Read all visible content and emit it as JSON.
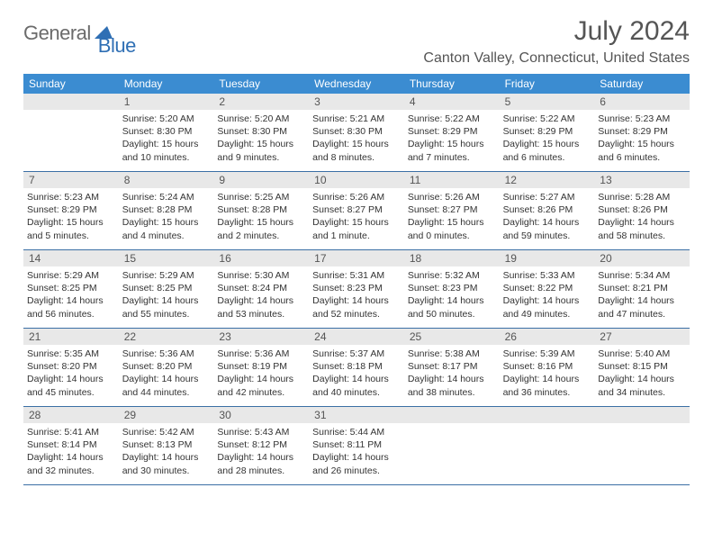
{
  "logo": {
    "general": "General",
    "blue": "Blue"
  },
  "title": "July 2024",
  "location": "Canton Valley, Connecticut, United States",
  "colors": {
    "header_bg": "#3b8cd1",
    "header_text": "#ffffff",
    "daynum_bg": "#e8e8e8",
    "week_border": "#3b6fa5",
    "logo_blue": "#2f6fb4",
    "logo_gray": "#6b6b6b"
  },
  "day_names": [
    "Sunday",
    "Monday",
    "Tuesday",
    "Wednesday",
    "Thursday",
    "Friday",
    "Saturday"
  ],
  "weeks": [
    [
      {
        "num": "",
        "sunrise": "",
        "sunset": "",
        "daylight": ""
      },
      {
        "num": "1",
        "sunrise": "Sunrise: 5:20 AM",
        "sunset": "Sunset: 8:30 PM",
        "daylight": "Daylight: 15 hours and 10 minutes."
      },
      {
        "num": "2",
        "sunrise": "Sunrise: 5:20 AM",
        "sunset": "Sunset: 8:30 PM",
        "daylight": "Daylight: 15 hours and 9 minutes."
      },
      {
        "num": "3",
        "sunrise": "Sunrise: 5:21 AM",
        "sunset": "Sunset: 8:30 PM",
        "daylight": "Daylight: 15 hours and 8 minutes."
      },
      {
        "num": "4",
        "sunrise": "Sunrise: 5:22 AM",
        "sunset": "Sunset: 8:29 PM",
        "daylight": "Daylight: 15 hours and 7 minutes."
      },
      {
        "num": "5",
        "sunrise": "Sunrise: 5:22 AM",
        "sunset": "Sunset: 8:29 PM",
        "daylight": "Daylight: 15 hours and 6 minutes."
      },
      {
        "num": "6",
        "sunrise": "Sunrise: 5:23 AM",
        "sunset": "Sunset: 8:29 PM",
        "daylight": "Daylight: 15 hours and 6 minutes."
      }
    ],
    [
      {
        "num": "7",
        "sunrise": "Sunrise: 5:23 AM",
        "sunset": "Sunset: 8:29 PM",
        "daylight": "Daylight: 15 hours and 5 minutes."
      },
      {
        "num": "8",
        "sunrise": "Sunrise: 5:24 AM",
        "sunset": "Sunset: 8:28 PM",
        "daylight": "Daylight: 15 hours and 4 minutes."
      },
      {
        "num": "9",
        "sunrise": "Sunrise: 5:25 AM",
        "sunset": "Sunset: 8:28 PM",
        "daylight": "Daylight: 15 hours and 2 minutes."
      },
      {
        "num": "10",
        "sunrise": "Sunrise: 5:26 AM",
        "sunset": "Sunset: 8:27 PM",
        "daylight": "Daylight: 15 hours and 1 minute."
      },
      {
        "num": "11",
        "sunrise": "Sunrise: 5:26 AM",
        "sunset": "Sunset: 8:27 PM",
        "daylight": "Daylight: 15 hours and 0 minutes."
      },
      {
        "num": "12",
        "sunrise": "Sunrise: 5:27 AM",
        "sunset": "Sunset: 8:26 PM",
        "daylight": "Daylight: 14 hours and 59 minutes."
      },
      {
        "num": "13",
        "sunrise": "Sunrise: 5:28 AM",
        "sunset": "Sunset: 8:26 PM",
        "daylight": "Daylight: 14 hours and 58 minutes."
      }
    ],
    [
      {
        "num": "14",
        "sunrise": "Sunrise: 5:29 AM",
        "sunset": "Sunset: 8:25 PM",
        "daylight": "Daylight: 14 hours and 56 minutes."
      },
      {
        "num": "15",
        "sunrise": "Sunrise: 5:29 AM",
        "sunset": "Sunset: 8:25 PM",
        "daylight": "Daylight: 14 hours and 55 minutes."
      },
      {
        "num": "16",
        "sunrise": "Sunrise: 5:30 AM",
        "sunset": "Sunset: 8:24 PM",
        "daylight": "Daylight: 14 hours and 53 minutes."
      },
      {
        "num": "17",
        "sunrise": "Sunrise: 5:31 AM",
        "sunset": "Sunset: 8:23 PM",
        "daylight": "Daylight: 14 hours and 52 minutes."
      },
      {
        "num": "18",
        "sunrise": "Sunrise: 5:32 AM",
        "sunset": "Sunset: 8:23 PM",
        "daylight": "Daylight: 14 hours and 50 minutes."
      },
      {
        "num": "19",
        "sunrise": "Sunrise: 5:33 AM",
        "sunset": "Sunset: 8:22 PM",
        "daylight": "Daylight: 14 hours and 49 minutes."
      },
      {
        "num": "20",
        "sunrise": "Sunrise: 5:34 AM",
        "sunset": "Sunset: 8:21 PM",
        "daylight": "Daylight: 14 hours and 47 minutes."
      }
    ],
    [
      {
        "num": "21",
        "sunrise": "Sunrise: 5:35 AM",
        "sunset": "Sunset: 8:20 PM",
        "daylight": "Daylight: 14 hours and 45 minutes."
      },
      {
        "num": "22",
        "sunrise": "Sunrise: 5:36 AM",
        "sunset": "Sunset: 8:20 PM",
        "daylight": "Daylight: 14 hours and 44 minutes."
      },
      {
        "num": "23",
        "sunrise": "Sunrise: 5:36 AM",
        "sunset": "Sunset: 8:19 PM",
        "daylight": "Daylight: 14 hours and 42 minutes."
      },
      {
        "num": "24",
        "sunrise": "Sunrise: 5:37 AM",
        "sunset": "Sunset: 8:18 PM",
        "daylight": "Daylight: 14 hours and 40 minutes."
      },
      {
        "num": "25",
        "sunrise": "Sunrise: 5:38 AM",
        "sunset": "Sunset: 8:17 PM",
        "daylight": "Daylight: 14 hours and 38 minutes."
      },
      {
        "num": "26",
        "sunrise": "Sunrise: 5:39 AM",
        "sunset": "Sunset: 8:16 PM",
        "daylight": "Daylight: 14 hours and 36 minutes."
      },
      {
        "num": "27",
        "sunrise": "Sunrise: 5:40 AM",
        "sunset": "Sunset: 8:15 PM",
        "daylight": "Daylight: 14 hours and 34 minutes."
      }
    ],
    [
      {
        "num": "28",
        "sunrise": "Sunrise: 5:41 AM",
        "sunset": "Sunset: 8:14 PM",
        "daylight": "Daylight: 14 hours and 32 minutes."
      },
      {
        "num": "29",
        "sunrise": "Sunrise: 5:42 AM",
        "sunset": "Sunset: 8:13 PM",
        "daylight": "Daylight: 14 hours and 30 minutes."
      },
      {
        "num": "30",
        "sunrise": "Sunrise: 5:43 AM",
        "sunset": "Sunset: 8:12 PM",
        "daylight": "Daylight: 14 hours and 28 minutes."
      },
      {
        "num": "31",
        "sunrise": "Sunrise: 5:44 AM",
        "sunset": "Sunset: 8:11 PM",
        "daylight": "Daylight: 14 hours and 26 minutes."
      },
      {
        "num": "",
        "sunrise": "",
        "sunset": "",
        "daylight": ""
      },
      {
        "num": "",
        "sunrise": "",
        "sunset": "",
        "daylight": ""
      },
      {
        "num": "",
        "sunrise": "",
        "sunset": "",
        "daylight": ""
      }
    ]
  ]
}
